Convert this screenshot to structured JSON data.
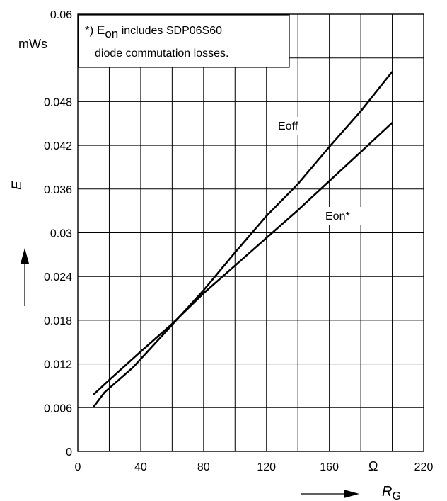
{
  "chart_data": {
    "type": "line",
    "xlabel_main": "R",
    "xlabel_sub": "G",
    "x_unit": "Ω",
    "ylabel": "E",
    "y_unit": "mWs",
    "xlim": [
      0,
      220
    ],
    "ylim": [
      0,
      0.06
    ],
    "x_ticks": [
      "0",
      "40",
      "80",
      "120",
      "160",
      "220"
    ],
    "y_ticks": [
      "0",
      "0.006",
      "0.012",
      "0.018",
      "0.024",
      "0.03",
      "0.036",
      "0.042",
      "0.048",
      "0.06"
    ],
    "grid": true,
    "note": {
      "prefix": "*) E",
      "subscript": "on",
      "line1_rest": " includes SDP06S60",
      "line2": "diode commutation losses."
    },
    "series": [
      {
        "name": "Eoff",
        "x": [
          10,
          17,
          35,
          55,
          80,
          100,
          120,
          140,
          160,
          180,
          200
        ],
        "y": [
          0.0061,
          0.0081,
          0.0115,
          0.0162,
          0.0221,
          0.0273,
          0.0323,
          0.0367,
          0.0418,
          0.0467,
          0.0521
        ]
      },
      {
        "name": "Eon*",
        "x": [
          10,
          20,
          40,
          60,
          80,
          100,
          120,
          140,
          160,
          180,
          200
        ],
        "y": [
          0.0078,
          0.0098,
          0.0137,
          0.0175,
          0.0217,
          0.0255,
          0.0293,
          0.0331,
          0.0371,
          0.0411,
          0.0451
        ]
      }
    ]
  }
}
